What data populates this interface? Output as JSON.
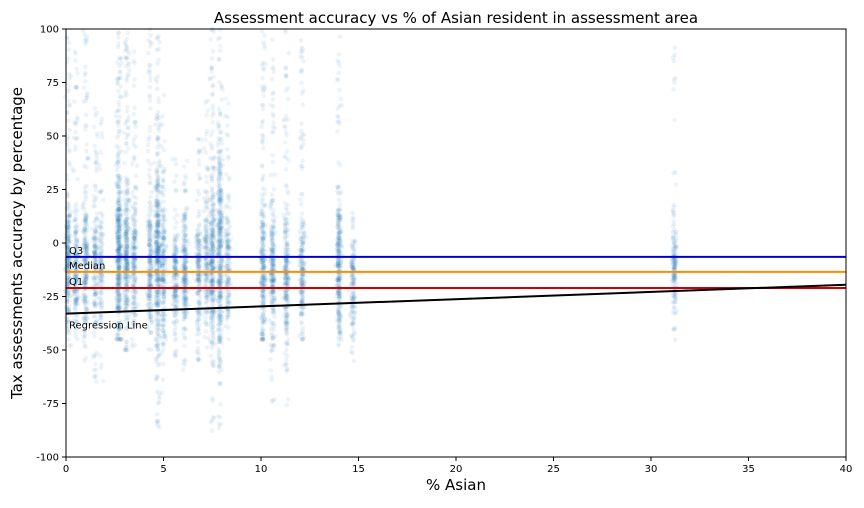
{
  "chart_data": {
    "type": "scatter",
    "title": "Assessment accuracy vs % of Asian resident in assessment area",
    "xlabel": "% Asian",
    "ylabel": "Tax assessments accuracy by percentage",
    "xlim": [
      0,
      40
    ],
    "ylim": [
      -100,
      100
    ],
    "xticks": [
      0,
      5,
      10,
      15,
      20,
      25,
      30,
      35,
      40
    ],
    "yticks": [
      -100,
      -75,
      -50,
      -25,
      0,
      25,
      50,
      75,
      100
    ],
    "point_color": "#1f77b4",
    "point_alpha": 0.08,
    "scatter_clusters": [
      {
        "x": 0.1,
        "count": 260,
        "center": -8,
        "spread": 14,
        "min": -48,
        "max": 100
      },
      {
        "x": 0.5,
        "count": 180,
        "center": -12,
        "spread": 13,
        "min": -45,
        "max": 90
      },
      {
        "x": 1.0,
        "count": 220,
        "center": -10,
        "spread": 15,
        "min": -55,
        "max": 100
      },
      {
        "x": 1.5,
        "count": 160,
        "center": -12,
        "spread": 14,
        "min": -65,
        "max": 70
      },
      {
        "x": 1.8,
        "count": 120,
        "center": -12,
        "spread": 12,
        "min": -75,
        "max": 60
      },
      {
        "x": 2.7,
        "count": 420,
        "center": -6,
        "spread": 20,
        "min": -45,
        "max": 100
      },
      {
        "x": 3.1,
        "count": 300,
        "center": -8,
        "spread": 17,
        "min": -50,
        "max": 100
      },
      {
        "x": 3.5,
        "count": 200,
        "center": -10,
        "spread": 14,
        "min": -50,
        "max": 90
      },
      {
        "x": 4.3,
        "count": 220,
        "center": -10,
        "spread": 16,
        "min": -50,
        "max": 100
      },
      {
        "x": 4.7,
        "count": 400,
        "center": -8,
        "spread": 20,
        "min": -88,
        "max": 100
      },
      {
        "x": 5.0,
        "count": 200,
        "center": -12,
        "spread": 16,
        "min": -70,
        "max": 70
      },
      {
        "x": 5.6,
        "count": 180,
        "center": -14,
        "spread": 12,
        "min": -55,
        "max": 45
      },
      {
        "x": 6.1,
        "count": 220,
        "center": -14,
        "spread": 12,
        "min": -60,
        "max": 40
      },
      {
        "x": 6.8,
        "count": 180,
        "center": -13,
        "spread": 13,
        "min": -55,
        "max": 50
      },
      {
        "x": 7.2,
        "count": 160,
        "center": -12,
        "spread": 14,
        "min": -50,
        "max": 70
      },
      {
        "x": 7.5,
        "count": 300,
        "center": -10,
        "spread": 18,
        "min": -88,
        "max": 100
      },
      {
        "x": 7.9,
        "count": 380,
        "center": -6,
        "spread": 22,
        "min": -90,
        "max": 100
      },
      {
        "x": 8.3,
        "count": 150,
        "center": -12,
        "spread": 12,
        "min": -45,
        "max": 70
      },
      {
        "x": 10.1,
        "count": 260,
        "center": -14,
        "spread": 16,
        "min": -45,
        "max": 100
      },
      {
        "x": 10.6,
        "count": 240,
        "center": -12,
        "spread": 15,
        "min": -85,
        "max": 95
      },
      {
        "x": 11.3,
        "count": 240,
        "center": -14,
        "spread": 15,
        "min": -80,
        "max": 100
      },
      {
        "x": 12.1,
        "count": 200,
        "center": -14,
        "spread": 14,
        "min": -45,
        "max": 95
      },
      {
        "x": 14.0,
        "count": 280,
        "center": -12,
        "spread": 16,
        "min": -48,
        "max": 100
      },
      {
        "x": 14.7,
        "count": 140,
        "center": -18,
        "spread": 13,
        "min": -55,
        "max": 15
      },
      {
        "x": 31.2,
        "count": 160,
        "center": -10,
        "spread": 10,
        "min": -48,
        "max": 95
      }
    ],
    "hlines": [
      {
        "name": "Q3",
        "label": "Q3",
        "y": -6.5,
        "color": "#0000cc"
      },
      {
        "name": "Median",
        "label": "Median",
        "y": -13.5,
        "color": "#ff8c00"
      },
      {
        "name": "Q1",
        "label": "Q1",
        "y": -21,
        "color": "#cc0000"
      }
    ],
    "regression_line": {
      "label": "Regression Line",
      "x": [
        0,
        40
      ],
      "y": [
        -33,
        -19.5
      ],
      "color": "#000000"
    }
  }
}
